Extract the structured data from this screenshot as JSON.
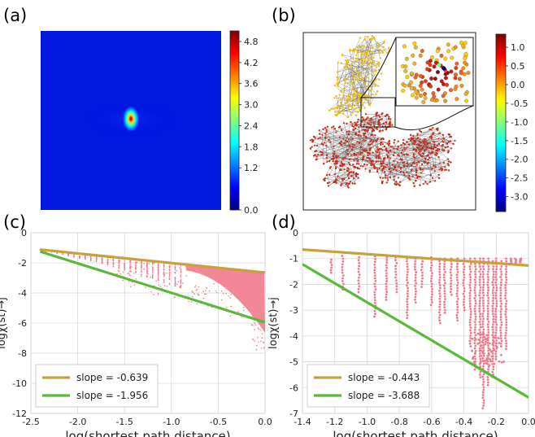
{
  "panel_labels": [
    "(a)",
    "(b)",
    "(c)",
    "(d)"
  ],
  "colormap": [
    "#00007f",
    "#0000ff",
    "#007fff",
    "#00ffff",
    "#7fff7f",
    "#ffff00",
    "#ff7f00",
    "#ff0000",
    "#7f0000"
  ],
  "chart_data": [
    {
      "id": "a",
      "type": "heatmap",
      "title": "",
      "colorbar": {
        "ticks": [
          "0.0",
          "1.2",
          "1.8",
          "2.4",
          "3.0",
          "3.6",
          "4.2",
          "4.8"
        ],
        "tick_values": [
          0.0,
          1.2,
          1.8,
          2.4,
          3.0,
          3.6,
          4.2,
          4.8
        ],
        "range": [
          0,
          5.1
        ]
      },
      "background_value": 0.35,
      "peak_value": 5.0
    },
    {
      "id": "b",
      "type": "network",
      "title": "",
      "inset": "zoom",
      "colorbar": {
        "ticks": [
          "1.0",
          "0.5",
          "0.0",
          "-0.5",
          "-1.0",
          "-1.5",
          "-2.0",
          "-2.5",
          "-3.0"
        ],
        "tick_values": [
          1.0,
          0.5,
          0.0,
          -0.5,
          -1.0,
          -1.5,
          -2.0,
          -2.5,
          -3.0
        ],
        "range": [
          -3.4,
          1.35
        ]
      }
    },
    {
      "id": "c",
      "type": "scatter",
      "xlabel": "log(shortest path distance)",
      "ylabel": "logχ(st)→j",
      "xlim": [
        -2.5,
        0.0
      ],
      "ylim": [
        -12,
        0
      ],
      "xticks": [
        "-2.5",
        "-2.0",
        "-1.5",
        "-1.0",
        "-0.5",
        "0.0"
      ],
      "xtick_values": [
        -2.5,
        -2.0,
        -1.5,
        -1.0,
        -0.5,
        0.0
      ],
      "yticks": [
        "0",
        "-2",
        "-4",
        "-6",
        "-8",
        "-10",
        "-12"
      ],
      "ytick_values": [
        0,
        -2,
        -4,
        -6,
        -8,
        -10,
        -12
      ],
      "grid": true,
      "legend_position": "lower-left",
      "series": [
        {
          "name": "slope = -0.639",
          "type": "line",
          "color": "#c8a03c",
          "x": [
            -2.4,
            0.0
          ],
          "y": [
            -1.12,
            -2.65
          ]
        },
        {
          "name": "slope = -1.956",
          "type": "line",
          "color": "#5cb83a",
          "x": [
            -2.4,
            0.0
          ],
          "y": [
            -1.25,
            -5.95
          ]
        }
      ],
      "points_color": "#f07a8c"
    },
    {
      "id": "d",
      "type": "scatter",
      "xlabel": "log(shortest path distance)",
      "ylabel": "logχ(st)→j",
      "xlim": [
        -1.4,
        0.0
      ],
      "ylim": [
        -7,
        0
      ],
      "xticks": [
        "-1.4",
        "-1.2",
        "-1.0",
        "-0.8",
        "-0.6",
        "-0.4",
        "-0.2",
        "0.0"
      ],
      "xtick_values": [
        -1.4,
        -1.2,
        -1.0,
        -0.8,
        -0.6,
        -0.4,
        -0.2,
        0.0
      ],
      "yticks": [
        "0",
        "-1",
        "-2",
        "-3",
        "-4",
        "-5",
        "-6",
        "-7"
      ],
      "ytick_values": [
        0,
        -1,
        -2,
        -3,
        -4,
        -5,
        -6,
        -7
      ],
      "grid": true,
      "legend_position": "lower-left",
      "series": [
        {
          "name": "slope = -0.443",
          "type": "line",
          "color": "#c8a03c",
          "x": [
            -1.4,
            0.0
          ],
          "y": [
            -0.65,
            -1.27
          ]
        },
        {
          "name": "slope = -3.688",
          "type": "line",
          "color": "#5cb83a",
          "x": [
            -1.4,
            0.0
          ],
          "y": [
            -1.22,
            -6.38
          ]
        }
      ],
      "points_color": "#f07a8c",
      "point_columns": [
        {
          "x": -1.22,
          "y": [
            -1.05,
            -1.55
          ]
        },
        {
          "x": -1.15,
          "y": [
            -0.9,
            -2.2
          ]
        },
        {
          "x": -1.05,
          "y": [
            -0.95,
            -2.3
          ]
        },
        {
          "x": -0.95,
          "y": [
            -0.92,
            -3.25
          ]
        },
        {
          "x": -0.88,
          "y": [
            -0.95,
            -2.6
          ]
        },
        {
          "x": -0.82,
          "y": [
            -0.95,
            -2.3
          ]
        },
        {
          "x": -0.75,
          "y": [
            -1.0,
            -3.3
          ]
        },
        {
          "x": -0.7,
          "y": [
            -1.0,
            -2.7
          ]
        },
        {
          "x": -0.66,
          "y": [
            -1.0,
            -2.1
          ]
        },
        {
          "x": -0.6,
          "y": [
            -0.95,
            -2.8
          ]
        },
        {
          "x": -0.55,
          "y": [
            -1.0,
            -3.5
          ]
        },
        {
          "x": -0.52,
          "y": [
            -1.0,
            -3.1
          ]
        },
        {
          "x": -0.48,
          "y": [
            -1.0,
            -2.4
          ]
        },
        {
          "x": -0.44,
          "y": [
            -1.0,
            -3.4
          ]
        },
        {
          "x": -0.4,
          "y": [
            -1.0,
            -3.0
          ]
        },
        {
          "x": -0.36,
          "y": [
            -1.0,
            -4.4
          ]
        },
        {
          "x": -0.33,
          "y": [
            -1.0,
            -5.3
          ]
        },
        {
          "x": -0.3,
          "y": [
            -1.0,
            -5.6
          ]
        },
        {
          "x": -0.28,
          "y": [
            -1.0,
            -6.8
          ]
        },
        {
          "x": -0.25,
          "y": [
            -1.0,
            -5.9
          ]
        },
        {
          "x": -0.22,
          "y": [
            -1.1,
            -5.6
          ]
        },
        {
          "x": -0.2,
          "y": [
            -1.0,
            -4.9
          ]
        },
        {
          "x": -0.17,
          "y": [
            -1.1,
            -4.4
          ]
        },
        {
          "x": -0.14,
          "y": [
            -1.0,
            -4.5
          ]
        },
        {
          "x": -0.11,
          "y": [
            -1.0,
            -1.2
          ]
        },
        {
          "x": -0.08,
          "y": [
            -1.0,
            -1.2
          ]
        },
        {
          "x": -0.05,
          "y": [
            -1.0,
            -1.15
          ]
        }
      ]
    }
  ]
}
